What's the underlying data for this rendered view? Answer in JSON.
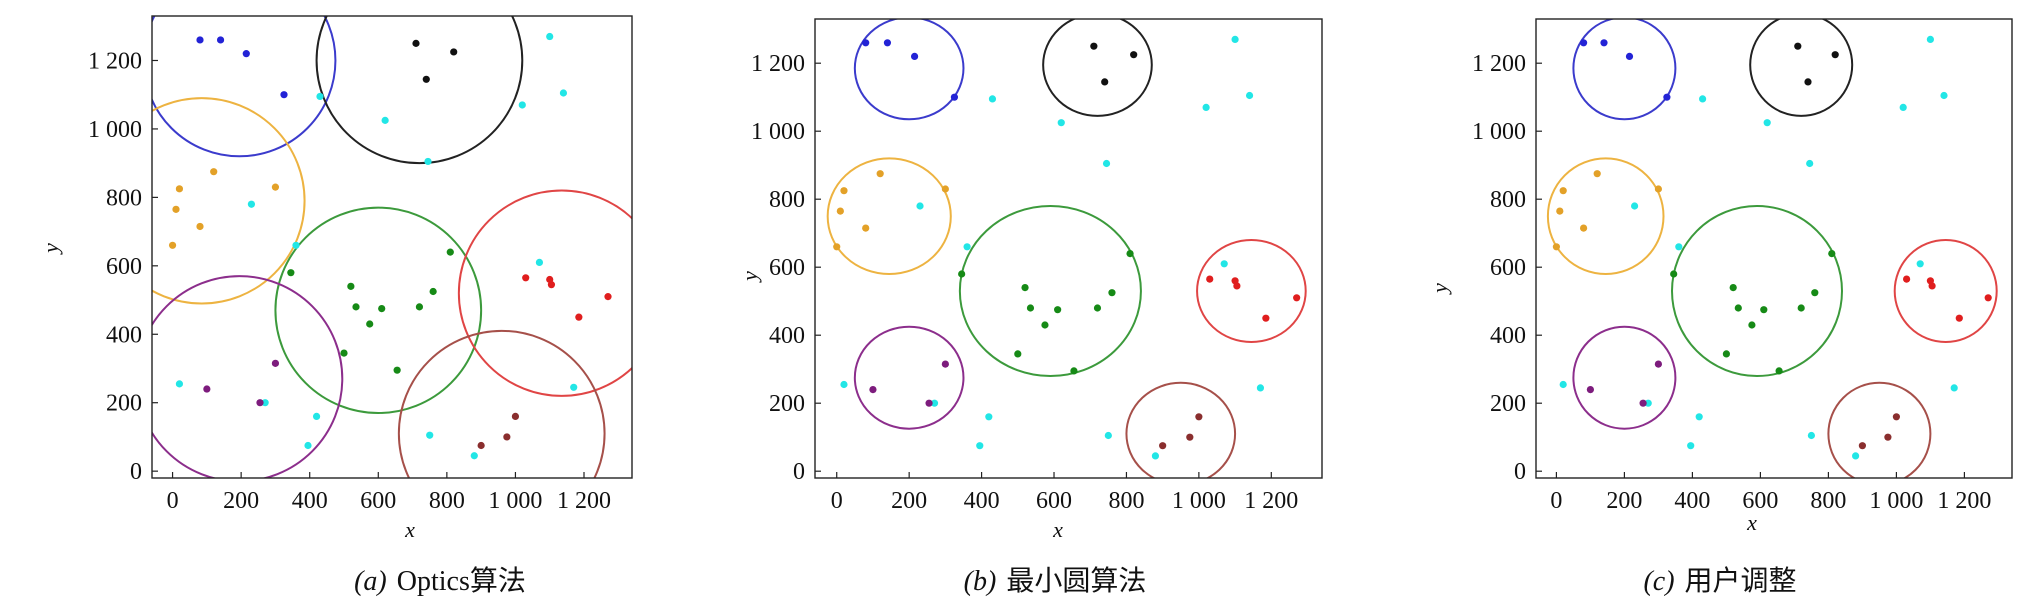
{
  "colors": {
    "blue": "#2323d6",
    "cyan": "#22e6e6",
    "orange": "#e3a128",
    "black": "#111111",
    "green": "#168a16",
    "red": "#e01e1e",
    "purple": "#7d1c7d",
    "brown": "#8a2e2e",
    "circle_blue": "#3b3bcc",
    "circle_orange": "#edb341",
    "circle_black": "#222222",
    "circle_green": "#3c9a3c",
    "circle_red": "#e04545",
    "circle_purple": "#8c2e8c",
    "circle_brown": "#a6504a"
  },
  "axis_labels": {
    "x": "x",
    "y": "y"
  },
  "chart_data": [
    {
      "type": "scatter",
      "caption_label": "(a)",
      "caption_text": "Optics算法",
      "xlabel": "x",
      "ylabel": "y",
      "xlim": [
        -60,
        1340
      ],
      "ylim": [
        -20,
        1330
      ],
      "xticks": [
        {
          "v": 0,
          "t": "0"
        },
        {
          "v": 200,
          "t": "200"
        },
        {
          "v": 400,
          "t": "400"
        },
        {
          "v": 600,
          "t": "600"
        },
        {
          "v": 800,
          "t": "800"
        },
        {
          "v": 1000,
          "t": "1 000"
        },
        {
          "v": 1200,
          "t": "1 200"
        }
      ],
      "yticks": [
        {
          "v": 0,
          "t": "0"
        },
        {
          "v": 200,
          "t": "200"
        },
        {
          "v": 400,
          "t": "400"
        },
        {
          "v": 600,
          "t": "600"
        },
        {
          "v": 800,
          "t": "800"
        },
        {
          "v": 1000,
          "t": "1 000"
        },
        {
          "v": 1200,
          "t": "1 200"
        }
      ],
      "circles": [
        {
          "color": "circle_blue",
          "cx": 195,
          "cy": 1200,
          "r": 280
        },
        {
          "color": "circle_black",
          "cx": 720,
          "cy": 1200,
          "r": 300
        },
        {
          "color": "circle_orange",
          "cx": 85,
          "cy": 790,
          "r": 300
        },
        {
          "color": "circle_green",
          "cx": 600,
          "cy": 470,
          "r": 300
        },
        {
          "color": "circle_red",
          "cx": 1135,
          "cy": 520,
          "r": 300
        },
        {
          "color": "circle_purple",
          "cx": 195,
          "cy": 270,
          "r": 300
        },
        {
          "color": "circle_brown",
          "cx": 960,
          "cy": 110,
          "r": 300
        }
      ]
    },
    {
      "type": "scatter",
      "caption_label": "(b)",
      "caption_text": "最小圆算法",
      "xlabel": "x",
      "ylabel": "y",
      "xlim": [
        -60,
        1340
      ],
      "ylim": [
        -20,
        1330
      ],
      "xticks": [
        {
          "v": 0,
          "t": "0"
        },
        {
          "v": 200,
          "t": "200"
        },
        {
          "v": 400,
          "t": "400"
        },
        {
          "v": 600,
          "t": "600"
        },
        {
          "v": 800,
          "t": "800"
        },
        {
          "v": 1000,
          "t": "1 000"
        },
        {
          "v": 1200,
          "t": "1 200"
        }
      ],
      "yticks": [
        {
          "v": 0,
          "t": "0"
        },
        {
          "v": 200,
          "t": "200"
        },
        {
          "v": 400,
          "t": "400"
        },
        {
          "v": 600,
          "t": "600"
        },
        {
          "v": 800,
          "t": "800"
        },
        {
          "v": 1000,
          "t": "1 000"
        },
        {
          "v": 1200,
          "t": "1 200"
        }
      ],
      "circles": [
        {
          "color": "circle_blue",
          "cx": 200,
          "cy": 1185,
          "r": 150
        },
        {
          "color": "circle_black",
          "cx": 720,
          "cy": 1195,
          "r": 150
        },
        {
          "color": "circle_orange",
          "cx": 145,
          "cy": 750,
          "r": 170
        },
        {
          "color": "circle_green",
          "cx": 590,
          "cy": 530,
          "r": 250
        },
        {
          "color": "circle_red",
          "cx": 1145,
          "cy": 530,
          "r": 150
        },
        {
          "color": "circle_purple",
          "cx": 200,
          "cy": 275,
          "r": 150
        },
        {
          "color": "circle_brown",
          "cx": 950,
          "cy": 110,
          "r": 150
        }
      ]
    },
    {
      "type": "scatter",
      "caption_label": "(c)",
      "caption_text": "用户调整",
      "xlabel": "x",
      "ylabel": "y",
      "xlim": [
        -60,
        1340
      ],
      "ylim": [
        -20,
        1330
      ],
      "xticks": [
        {
          "v": 0,
          "t": "0"
        },
        {
          "v": 200,
          "t": "200"
        },
        {
          "v": 400,
          "t": "400"
        },
        {
          "v": 600,
          "t": "600"
        },
        {
          "v": 800,
          "t": "800"
        },
        {
          "v": 1000,
          "t": "1 000"
        },
        {
          "v": 1200,
          "t": "1 200"
        }
      ],
      "yticks": [
        {
          "v": 0,
          "t": "0"
        },
        {
          "v": 200,
          "t": "200"
        },
        {
          "v": 400,
          "t": "400"
        },
        {
          "v": 600,
          "t": "600"
        },
        {
          "v": 800,
          "t": "800"
        },
        {
          "v": 1000,
          "t": "1 000"
        },
        {
          "v": 1200,
          "t": "1 200"
        }
      ],
      "circles": [
        {
          "color": "circle_blue",
          "cx": 200,
          "cy": 1185,
          "r": 150
        },
        {
          "color": "circle_black",
          "cx": 720,
          "cy": 1195,
          "r": 150
        },
        {
          "color": "circle_orange",
          "cx": 145,
          "cy": 750,
          "r": 170
        },
        {
          "color": "circle_green",
          "cx": 590,
          "cy": 530,
          "r": 250
        },
        {
          "color": "circle_red",
          "cx": 1145,
          "cy": 530,
          "r": 150
        },
        {
          "color": "circle_purple",
          "cx": 200,
          "cy": 275,
          "r": 150
        },
        {
          "color": "circle_brown",
          "cx": 950,
          "cy": 110,
          "r": 150
        }
      ]
    }
  ],
  "points": [
    {
      "c": "blue",
      "x": 80,
      "y": 1260
    },
    {
      "c": "blue",
      "x": 140,
      "y": 1260
    },
    {
      "c": "blue",
      "x": 215,
      "y": 1220
    },
    {
      "c": "blue",
      "x": 325,
      "y": 1100
    },
    {
      "c": "black",
      "x": 710,
      "y": 1250
    },
    {
      "c": "black",
      "x": 740,
      "y": 1145
    },
    {
      "c": "black",
      "x": 820,
      "y": 1225
    },
    {
      "c": "cyan",
      "x": 1100,
      "y": 1270
    },
    {
      "c": "cyan",
      "x": 1140,
      "y": 1105
    },
    {
      "c": "cyan",
      "x": 1020,
      "y": 1070
    },
    {
      "c": "cyan",
      "x": 620,
      "y": 1025
    },
    {
      "c": "cyan",
      "x": 745,
      "y": 905
    },
    {
      "c": "cyan",
      "x": 430,
      "y": 1095
    },
    {
      "c": "cyan",
      "x": 230,
      "y": 780
    },
    {
      "c": "cyan",
      "x": 360,
      "y": 660
    },
    {
      "c": "cyan",
      "x": 1070,
      "y": 610
    },
    {
      "c": "cyan",
      "x": 20,
      "y": 255
    },
    {
      "c": "cyan",
      "x": 270,
      "y": 200
    },
    {
      "c": "cyan",
      "x": 420,
      "y": 160
    },
    {
      "c": "cyan",
      "x": 395,
      "y": 75
    },
    {
      "c": "cyan",
      "x": 750,
      "y": 105
    },
    {
      "c": "cyan",
      "x": 880,
      "y": 45
    },
    {
      "c": "cyan",
      "x": 1170,
      "y": 245
    },
    {
      "c": "orange",
      "x": 20,
      "y": 825
    },
    {
      "c": "orange",
      "x": 120,
      "y": 875
    },
    {
      "c": "orange",
      "x": 300,
      "y": 830
    },
    {
      "c": "orange",
      "x": 10,
      "y": 765
    },
    {
      "c": "orange",
      "x": 80,
      "y": 715
    },
    {
      "c": "orange",
      "x": 0,
      "y": 660
    },
    {
      "c": "green",
      "x": 345,
      "y": 580
    },
    {
      "c": "green",
      "x": 520,
      "y": 540
    },
    {
      "c": "green",
      "x": 535,
      "y": 480
    },
    {
      "c": "green",
      "x": 575,
      "y": 430
    },
    {
      "c": "green",
      "x": 610,
      "y": 475
    },
    {
      "c": "green",
      "x": 500,
      "y": 345
    },
    {
      "c": "green",
      "x": 655,
      "y": 295
    },
    {
      "c": "green",
      "x": 720,
      "y": 480
    },
    {
      "c": "green",
      "x": 760,
      "y": 525
    },
    {
      "c": "green",
      "x": 810,
      "y": 640
    },
    {
      "c": "red",
      "x": 1030,
      "y": 565
    },
    {
      "c": "red",
      "x": 1100,
      "y": 560
    },
    {
      "c": "red",
      "x": 1105,
      "y": 545
    },
    {
      "c": "red",
      "x": 1185,
      "y": 450
    },
    {
      "c": "red",
      "x": 1270,
      "y": 510
    },
    {
      "c": "purple",
      "x": 100,
      "y": 240
    },
    {
      "c": "purple",
      "x": 300,
      "y": 315
    },
    {
      "c": "purple",
      "x": 255,
      "y": 200
    },
    {
      "c": "brown",
      "x": 900,
      "y": 75
    },
    {
      "c": "brown",
      "x": 975,
      "y": 100
    },
    {
      "c": "brown",
      "x": 1000,
      "y": 160
    }
  ],
  "captions": [
    {
      "label": "(a)",
      "text": "Optics算法"
    },
    {
      "label": "(b)",
      "text": "最小圆算法"
    },
    {
      "label": "(c)",
      "text": "用户调整"
    }
  ]
}
